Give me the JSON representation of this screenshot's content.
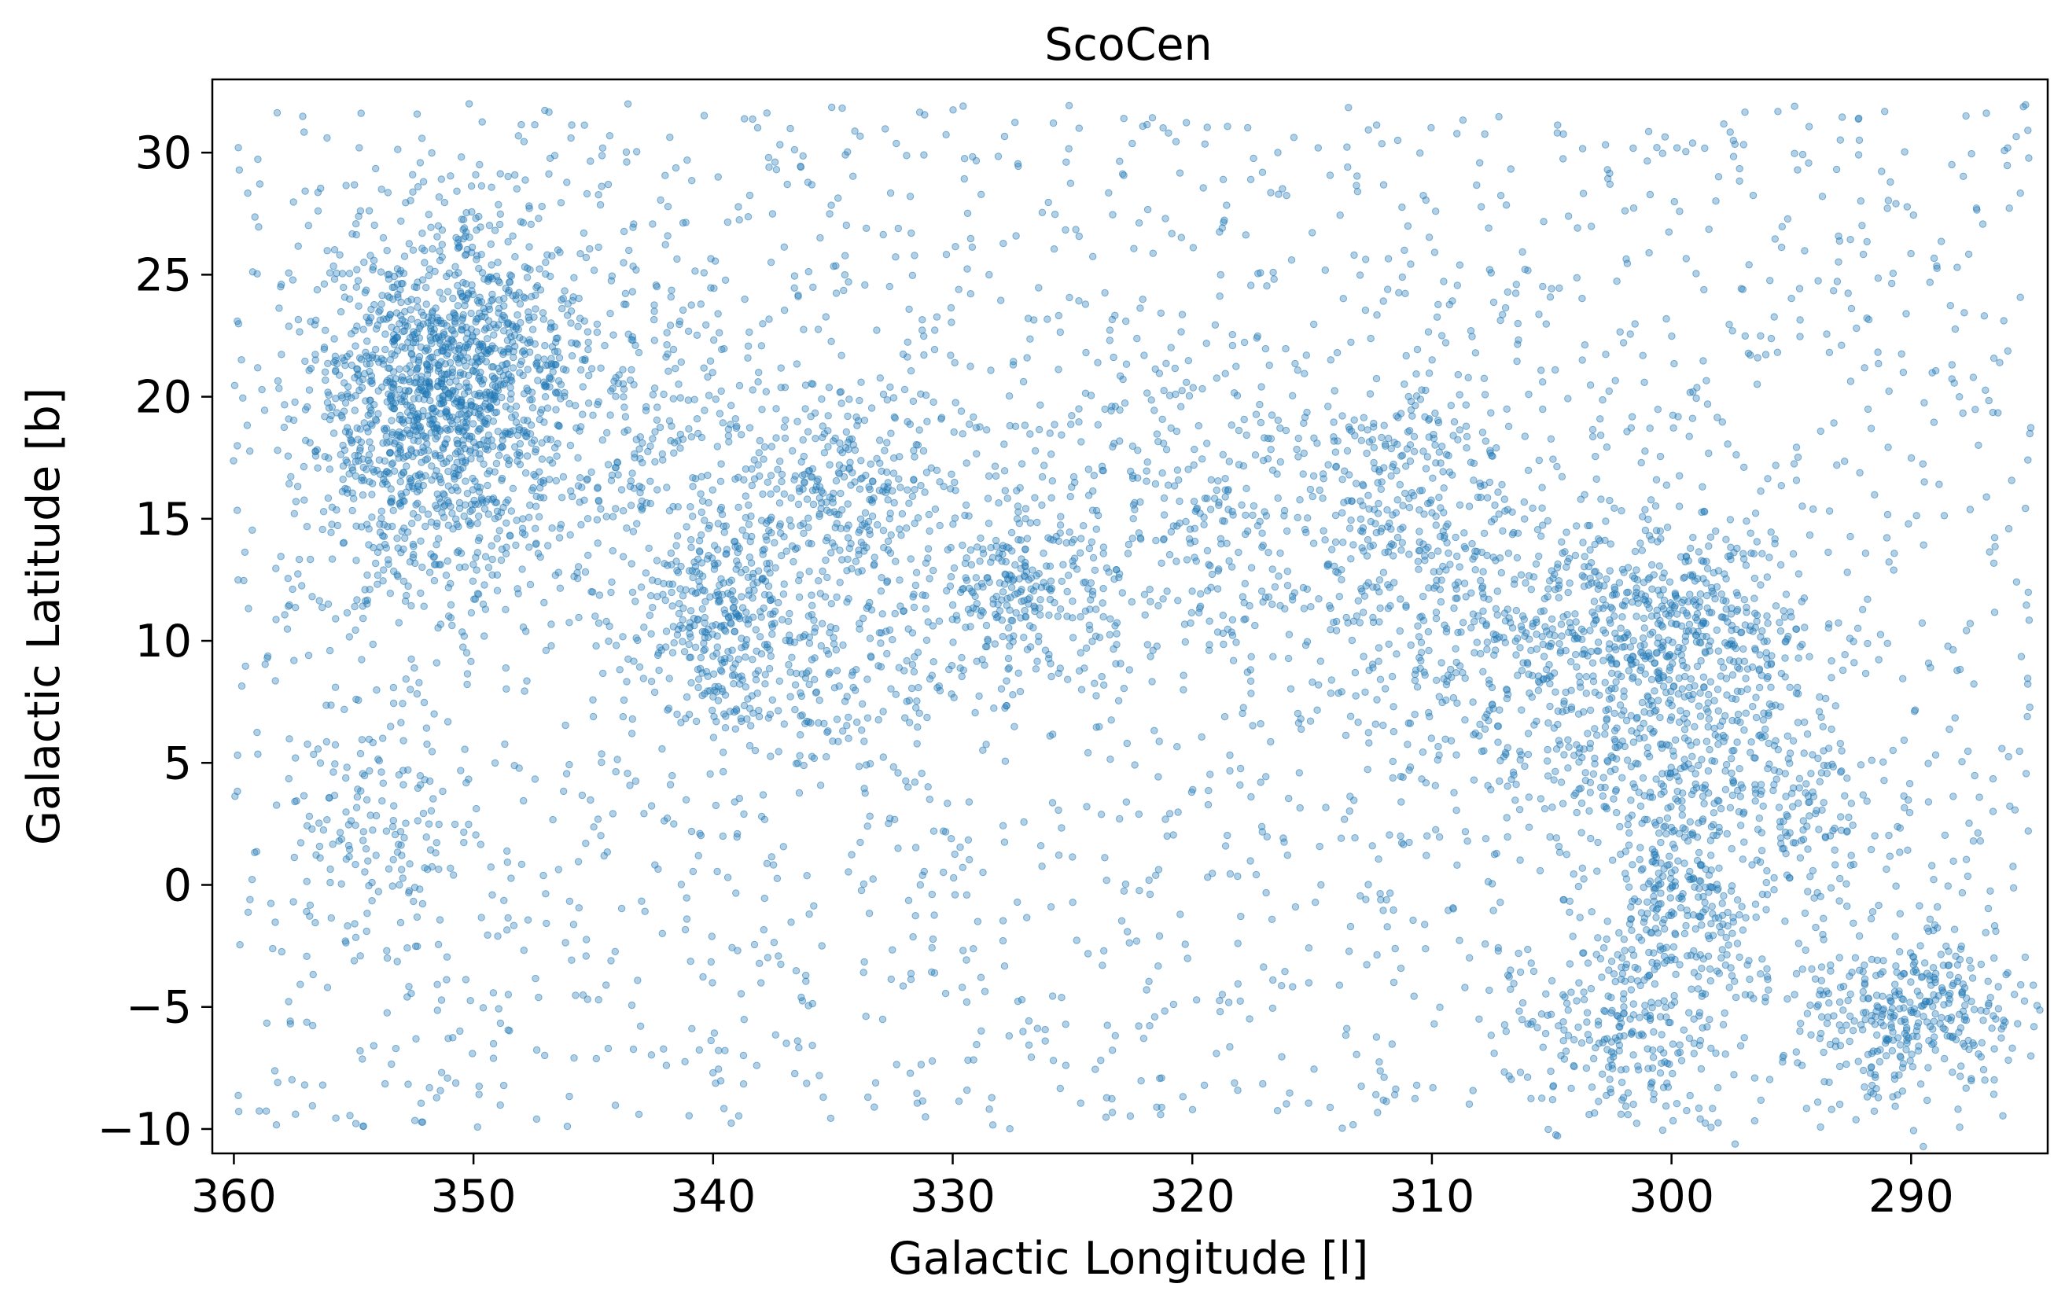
{
  "chart_data": {
    "type": "scatter",
    "title": "ScoCen",
    "xlabel": "Galactic Longitude [l]",
    "ylabel": "Galactic Latitude [b]",
    "xlim": [
      360.9,
      284.3
    ],
    "ylim": [
      -11.0,
      33.0
    ],
    "x_reversed": true,
    "xticks": [
      360,
      350,
      340,
      330,
      320,
      310,
      300,
      290
    ],
    "xtick_labels": [
      "360",
      "350",
      "340",
      "330",
      "320",
      "310",
      "300",
      "290"
    ],
    "yticks": [
      -10,
      -5,
      0,
      5,
      10,
      15,
      20,
      25,
      30
    ],
    "ytick_labels": [
      "−10",
      "−5",
      "0",
      "5",
      "10",
      "15",
      "20",
      "25",
      "30"
    ],
    "grid": false,
    "legend": "none",
    "marker_color": "#1f77b4",
    "marker_alpha": 0.35,
    "seed": 20240917,
    "components": [
      {
        "kind": "uniform",
        "n": 2600,
        "l_range": [
          285,
          360
        ],
        "b_range": [
          -10,
          32
        ]
      },
      {
        "kind": "cluster",
        "n": 1100,
        "l": 352.0,
        "b": 19.5,
        "sl": 2.4,
        "sb": 3.6
      },
      {
        "kind": "cluster",
        "n": 300,
        "l": 348.5,
        "b": 22.0,
        "sl": 2.5,
        "sb": 2.5
      },
      {
        "kind": "cluster",
        "n": 280,
        "l": 339.5,
        "b": 11.0,
        "sl": 1.6,
        "sb": 2.2
      },
      {
        "kind": "cluster",
        "n": 320,
        "l": 334.5,
        "b": 16.0,
        "sl": 2.8,
        "sb": 2.6
      },
      {
        "kind": "cluster",
        "n": 220,
        "l": 327.5,
        "b": 12.0,
        "sl": 2.0,
        "sb": 1.8
      },
      {
        "kind": "cluster",
        "n": 200,
        "l": 320.0,
        "b": 15.0,
        "sl": 3.0,
        "sb": 3.5
      },
      {
        "kind": "cluster",
        "n": 200,
        "l": 311.5,
        "b": 16.5,
        "sl": 2.2,
        "sb": 2.2
      },
      {
        "kind": "cluster",
        "n": 320,
        "l": 307.5,
        "b": 11.0,
        "sl": 3.5,
        "sb": 3.0
      },
      {
        "kind": "cluster",
        "n": 420,
        "l": 301.0,
        "b": 7.0,
        "sl": 3.5,
        "sb": 3.2
      },
      {
        "kind": "cluster",
        "n": 320,
        "l": 299.0,
        "b": 11.0,
        "sl": 2.5,
        "sb": 2.0
      },
      {
        "kind": "cluster",
        "n": 220,
        "l": 299.5,
        "b": -1.0,
        "sl": 1.4,
        "sb": 2.6
      },
      {
        "kind": "cluster",
        "n": 180,
        "l": 302.0,
        "b": -6.0,
        "sl": 2.2,
        "sb": 2.0
      },
      {
        "kind": "cluster",
        "n": 320,
        "l": 290.0,
        "b": -5.0,
        "sl": 2.2,
        "sb": 1.6
      },
      {
        "kind": "cluster",
        "n": 220,
        "l": 343.0,
        "b": 18.0,
        "sl": 3.5,
        "sb": 4.0
      },
      {
        "kind": "cluster",
        "n": 160,
        "l": 296.0,
        "b": 4.0,
        "sl": 2.5,
        "sb": 2.5
      },
      {
        "kind": "cluster",
        "n": 130,
        "l": 335.0,
        "b": 8.0,
        "sl": 3.0,
        "sb": 2.0
      },
      {
        "kind": "cluster",
        "n": 110,
        "l": 354.0,
        "b": 2.0,
        "sl": 2.0,
        "sb": 2.5
      }
    ]
  }
}
